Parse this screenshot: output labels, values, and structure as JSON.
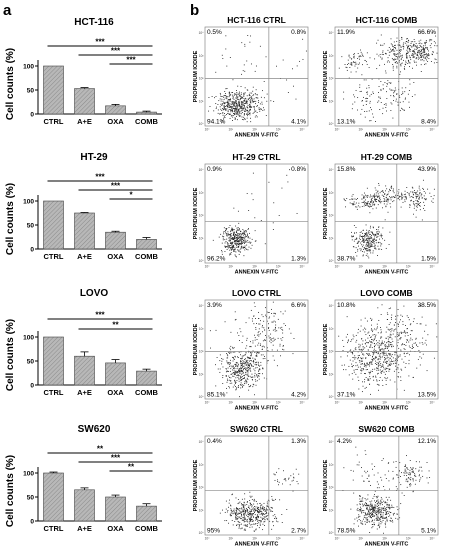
{
  "panels": {
    "a": "a",
    "b": "b"
  },
  "chart_data": {
    "bar_charts": [
      {
        "type": "bar",
        "title": "HCT-116",
        "ylabel": "Cell counts (%)",
        "categories": [
          "CTRL",
          "A+E",
          "OXA",
          "COMB"
        ],
        "values": [
          100,
          53,
          17,
          4
        ],
        "errors": [
          0,
          2,
          3,
          2
        ],
        "ylim": [
          0,
          100
        ],
        "yticks": [
          "0",
          "50",
          "100"
        ],
        "significance": [
          {
            "from": 0,
            "to": 3,
            "label": "***"
          },
          {
            "from": 1,
            "to": 3,
            "label": "***"
          },
          {
            "from": 2,
            "to": 3,
            "label": "***"
          }
        ]
      },
      {
        "type": "bar",
        "title": "HT-29",
        "ylabel": "Cell counts (%)",
        "categories": [
          "CTRL",
          "A+E",
          "OXA",
          "COMB"
        ],
        "values": [
          100,
          75,
          35,
          20
        ],
        "errors": [
          0,
          1,
          2,
          4
        ],
        "ylim": [
          0,
          100
        ],
        "yticks": [
          "0",
          "50",
          "100"
        ],
        "significance": [
          {
            "from": 0,
            "to": 3,
            "label": "***"
          },
          {
            "from": 1,
            "to": 3,
            "label": "***"
          },
          {
            "from": 2,
            "to": 3,
            "label": "*"
          }
        ]
      },
      {
        "type": "bar",
        "title": "LOVO",
        "ylabel": "Cell counts (%)",
        "categories": [
          "CTRL",
          "A+E",
          "OXA",
          "COMB"
        ],
        "values": [
          100,
          60,
          46,
          29
        ],
        "errors": [
          0,
          9,
          7,
          4
        ],
        "ylim": [
          0,
          100
        ],
        "yticks": [
          "0",
          "50",
          "100"
        ],
        "significance": [
          {
            "from": 0,
            "to": 3,
            "label": "***"
          },
          {
            "from": 1,
            "to": 3,
            "label": "**"
          }
        ]
      },
      {
        "type": "bar",
        "title": "SW620",
        "ylabel": "Cell counts (%)",
        "categories": [
          "CTRL",
          "A+E",
          "OXA",
          "COMB"
        ],
        "values": [
          100,
          65,
          50,
          31
        ],
        "errors": [
          2,
          4,
          4,
          5
        ],
        "ylim": [
          0,
          100
        ],
        "yticks": [
          "0",
          "50",
          "100"
        ],
        "significance": [
          {
            "from": 0,
            "to": 3,
            "label": "**"
          },
          {
            "from": 1,
            "to": 3,
            "label": "***"
          },
          {
            "from": 2,
            "to": 3,
            "label": "**"
          }
        ]
      }
    ],
    "flow_plots": [
      {
        "type": "scatter",
        "title": "HCT-116 CTRL",
        "xlabel": "ANNEXIN V-FITC",
        "ylabel": "PROPIDIUM IODIDE",
        "quadrants": {
          "ul": "0.5%",
          "ur": "0.8%",
          "ll": "94.1%",
          "lr": "4.1%"
        }
      },
      {
        "type": "scatter",
        "title": "HCT-116 COMB",
        "xlabel": "ANNEXIN V-FITC",
        "ylabel": "PROPIDIUM IODIDE",
        "quadrants": {
          "ul": "11.9%",
          "ur": "66.6%",
          "ll": "13.1%",
          "lr": "8.4%"
        }
      },
      {
        "type": "scatter",
        "title": "HT-29 CTRL",
        "xlabel": "ANNEXIN V-FITC",
        "ylabel": "PROPIDIUM IODIDE",
        "quadrants": {
          "ul": "0.9%",
          "ur": "0.8%",
          "ll": "96.2%",
          "lr": "1.3%"
        }
      },
      {
        "type": "scatter",
        "title": "HT-29 COMB",
        "xlabel": "ANNEXIN V-FITC",
        "ylabel": "PROPIDIUM IODIDE",
        "quadrants": {
          "ul": "15.8%",
          "ur": "43.9%",
          "ll": "38.7%",
          "lr": "1.5%"
        }
      },
      {
        "type": "scatter",
        "title": "LOVO CTRL",
        "xlabel": "ANNEXIN V-FITC",
        "ylabel": "PROPIDIUM IODIDE",
        "quadrants": {
          "ul": "3.9%",
          "ur": "6.6%",
          "ll": "85.1%",
          "lr": "4.2%"
        }
      },
      {
        "type": "scatter",
        "title": "LOVO COMB",
        "xlabel": "ANNEXIN V-FITC",
        "ylabel": "PROPIDIUM IODIDE",
        "quadrants": {
          "ul": "10.8%",
          "ur": "38.5%",
          "ll": "37.1%",
          "lr": "13.5%"
        }
      },
      {
        "type": "scatter",
        "title": "SW620 CTRL",
        "xlabel": "ANNEXIN V-FITC",
        "ylabel": "PROPIDIUM IODIDE",
        "quadrants": {
          "ul": "0.4%",
          "ur": "1.3%",
          "ll": "95%",
          "lr": "2.7%"
        }
      },
      {
        "type": "scatter",
        "title": "SW620 COMB",
        "xlabel": "ANNEXIN V-FITC",
        "ylabel": "PROPIDIUM IODIDE",
        "quadrants": {
          "ul": "4.2%",
          "ur": "12.1%",
          "ll": "78.5%",
          "lr": "5.1%"
        }
      }
    ],
    "flow_axis_ticks": [
      "10⁰",
      "10¹",
      "10²",
      "10³",
      "10⁴"
    ]
  }
}
